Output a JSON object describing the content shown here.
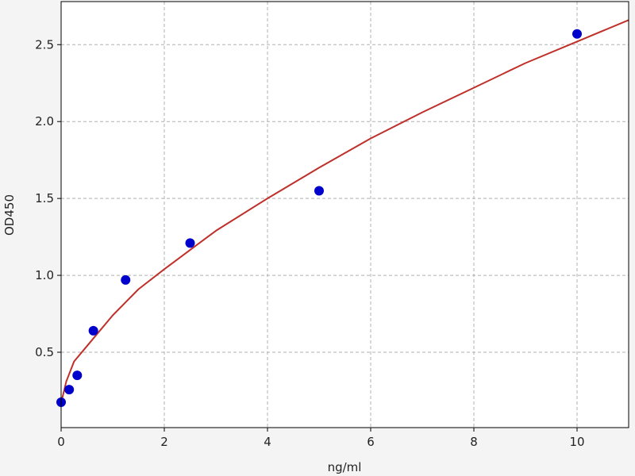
{
  "chart_data": {
    "type": "scatter",
    "title": "",
    "xlabel": "ng/ml",
    "ylabel": "OD450",
    "xlim": [
      0,
      11
    ],
    "ylim": [
      0.01,
      2.78
    ],
    "grid": true,
    "x_ticks": [
      0,
      2,
      4,
      6,
      8,
      10
    ],
    "x_tick_labels": [
      "0",
      "2",
      "4",
      "6",
      "8",
      "10"
    ],
    "y_ticks": [
      0.5,
      1.0,
      1.5,
      2.0,
      2.5
    ],
    "y_tick_labels": [
      "0.5",
      "1.0",
      "1.5",
      "2.0",
      "2.5"
    ],
    "series": [
      {
        "type": "scatter",
        "color": "#0000cc",
        "x": [
          0,
          0.156,
          0.312,
          0.625,
          1.25,
          2.5,
          5,
          10
        ],
        "y": [
          0.175,
          0.257,
          0.35,
          0.64,
          0.97,
          1.21,
          1.55,
          2.57
        ]
      },
      {
        "type": "line",
        "color": "#c0302a",
        "x": [
          0,
          0.1,
          0.25,
          0.5,
          1,
          1.5,
          2,
          3,
          4,
          5,
          6,
          7,
          8,
          9,
          10,
          11
        ],
        "y": [
          0.17,
          0.31,
          0.44,
          0.54,
          0.74,
          0.91,
          1.04,
          1.29,
          1.5,
          1.7,
          1.89,
          2.06,
          2.22,
          2.38,
          2.52,
          2.66
        ]
      }
    ]
  }
}
